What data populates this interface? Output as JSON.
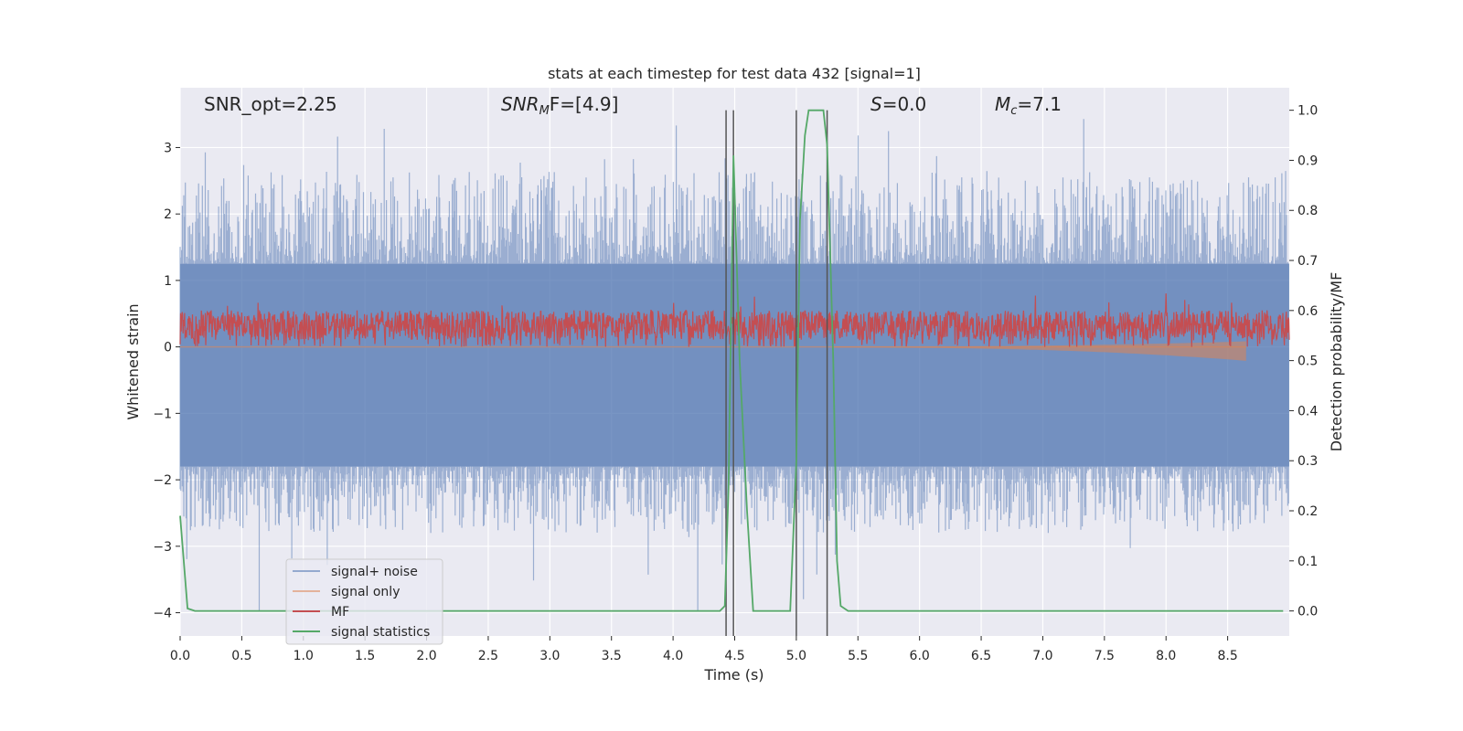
{
  "chart_data": {
    "type": "line",
    "title": "stats at each timestep for test data 432 [signal=1]",
    "xlabel": "Time (s)",
    "ylabel": "Whitened strain",
    "y2label": "Detection probability/MF",
    "xlim": [
      0,
      9.0
    ],
    "ylim": [
      -4.35,
      3.9
    ],
    "y2lim": [
      -0.05,
      1.045
    ],
    "x_ticks": [
      "0.0",
      "0.5",
      "1.0",
      "1.5",
      "2.0",
      "2.5",
      "3.0",
      "3.5",
      "4.0",
      "4.5",
      "5.0",
      "5.5",
      "6.0",
      "6.5",
      "7.0",
      "7.5",
      "8.0",
      "8.5"
    ],
    "y_ticks": [
      "3",
      "2",
      "1",
      "0",
      "−1",
      "−2",
      "−3",
      "−4"
    ],
    "y2_ticks": [
      "1.0",
      "0.9",
      "0.8",
      "0.7",
      "0.6",
      "0.5",
      "0.4",
      "0.3",
      "0.2",
      "0.1",
      "0.0"
    ],
    "grid": true,
    "legend_position": "lower-left",
    "annotations": {
      "snr_opt": "SNR_opt=2.25",
      "snr_mf_base": "SNR",
      "snr_mf_sub": "M",
      "snr_mf_rest": "F=[4.9]",
      "s_italic": "S",
      "s_rest": "=0.0",
      "mc_base": "M",
      "mc_sub": "c",
      "mc_rest": "=7.1"
    },
    "vertical_lines_x": [
      4.43,
      4.49,
      5.0,
      5.25
    ],
    "series": [
      {
        "name": "signal+ noise",
        "color": "#4c72b0",
        "kind": "noise band",
        "core_range": [
          -1.8,
          1.25
        ],
        "spike_range": [
          -4.0,
          3.5
        ]
      },
      {
        "name": "signal only",
        "color": "#dd8452",
        "kind": "chirp",
        "x_end": 8.65,
        "amplitude_end": 0.2
      },
      {
        "name": "MF",
        "color": "#c44e52",
        "kind": "noisy",
        "range": [
          0.0,
          0.85
        ],
        "typical": [
          0.1,
          0.55
        ]
      },
      {
        "name": "signal statistics",
        "color": "#55a868",
        "x": [
          0.0,
          0.06,
          0.12,
          0.3,
          2.0,
          4.38,
          4.42,
          4.45,
          4.49,
          4.54,
          4.6,
          4.65,
          4.7,
          4.95,
          5.0,
          5.03,
          5.07,
          5.1,
          5.22,
          5.25,
          5.3,
          5.33,
          5.36,
          5.42,
          8.95
        ],
        "y": [
          0.19,
          0.005,
          0.0,
          0.0,
          0.0,
          0.0,
          0.01,
          0.25,
          0.91,
          0.5,
          0.2,
          0.0,
          0.0,
          0.0,
          0.3,
          0.78,
          0.95,
          1.0,
          1.0,
          0.93,
          0.5,
          0.1,
          0.01,
          0.0,
          0.0
        ]
      }
    ]
  }
}
